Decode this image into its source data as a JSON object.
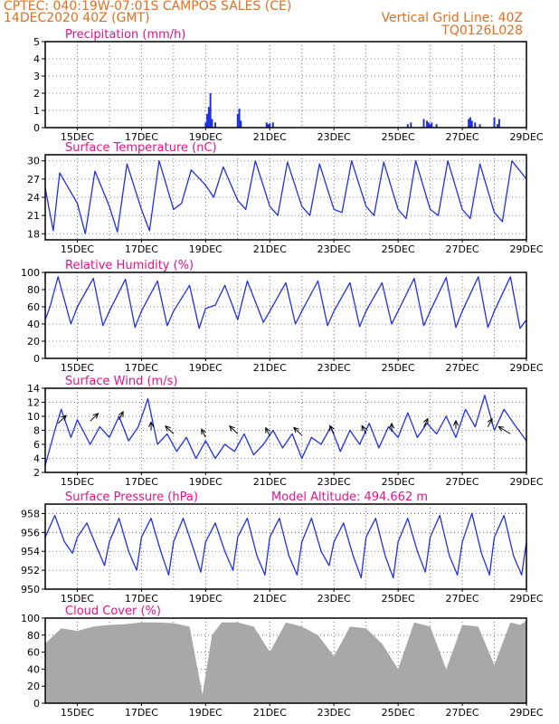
{
  "header": {
    "line1": "CPTEC:  040:19W-07:01S  CAMPOS SALES (CE)",
    "line2": "14DEC2020 40Z (GMT)",
    "vertical_grid": "Vertical Grid Line: 40Z",
    "code": "TQ0126L028"
  },
  "colors": {
    "header": "#e07020",
    "title": "#e0148c",
    "line": "#2030e0",
    "cloud": "#a8a8a8"
  },
  "x_ticks": [
    "15DEC",
    "17DEC",
    "19DEC",
    "21DEC",
    "23DEC",
    "25DEC",
    "27DEC",
    "29DEC"
  ],
  "chart_data": [
    {
      "type": "bar",
      "title": "Precipitation (mm/h)",
      "ylim": [
        0,
        5
      ],
      "yticks": [
        "0",
        "1",
        "2",
        "3",
        "4",
        "5"
      ],
      "series": [
        {
          "x": [
            5.0,
            5.05,
            5.1,
            5.15,
            5.2,
            5.3,
            6.0,
            6.05,
            6.1,
            6.9,
            6.95,
            7.0,
            7.1,
            11.3,
            11.4,
            11.8,
            11.9,
            11.95,
            12.0,
            12.05,
            12.2,
            13.2,
            13.25,
            13.3,
            13.4,
            13.55,
            14.0,
            14.1,
            14.15
          ],
          "values": [
            0.3,
            0.8,
            1.2,
            2.0,
            0.5,
            0.3,
            0.8,
            1.1,
            0.4,
            0.3,
            0.2,
            0.25,
            0.3,
            0.2,
            0.3,
            0.5,
            0.4,
            0.3,
            0.2,
            0.3,
            0.2,
            0.5,
            0.6,
            0.4,
            0.3,
            0.2,
            0.6,
            0.2,
            0.5
          ]
        }
      ]
    },
    {
      "type": "line",
      "title": "Surface Temperature (nC)",
      "ylim": [
        17,
        31
      ],
      "yticks": [
        "18",
        "21",
        "24",
        "27",
        "30"
      ],
      "series": [
        {
          "x": [
            0.0,
            0.25,
            0.45,
            1.0,
            1.25,
            1.55,
            2.0,
            2.25,
            2.55,
            3.0,
            3.25,
            3.55,
            4.0,
            4.25,
            4.55,
            5.0,
            5.25,
            5.55,
            6.0,
            6.25,
            6.55,
            7.0,
            7.25,
            7.55,
            8.0,
            8.25,
            8.55,
            9.0,
            9.25,
            9.55,
            10.0,
            10.25,
            10.55,
            11.0,
            11.25,
            11.55,
            12.0,
            12.25,
            12.55,
            13.0,
            13.25,
            13.55,
            14.0,
            14.25,
            14.55,
            15.0
          ],
          "values": [
            25.5,
            18.5,
            28.0,
            23.0,
            18.0,
            28.3,
            22.5,
            18.3,
            29.5,
            22.0,
            18.5,
            30.0,
            22.0,
            23.0,
            28.5,
            26.0,
            24.0,
            29.0,
            23.5,
            22.0,
            30.0,
            22.5,
            21.0,
            29.8,
            22.5,
            21.0,
            29.5,
            22.0,
            21.5,
            30.0,
            22.5,
            21.0,
            29.8,
            22.0,
            20.5,
            30.0,
            22.0,
            21.0,
            30.0,
            22.0,
            20.5,
            29.5,
            21.5,
            20.0,
            30.0,
            27.0
          ]
        }
      ]
    },
    {
      "type": "line",
      "title": "Relative Humidity (%)",
      "ylim": [
        0,
        100
      ],
      "yticks": [
        "0",
        "20",
        "40",
        "60",
        "80",
        "100"
      ],
      "series": [
        {
          "x": [
            0.0,
            0.15,
            0.4,
            0.8,
            1.0,
            1.5,
            1.8,
            2.0,
            2.5,
            2.8,
            3.0,
            3.5,
            3.8,
            4.0,
            4.5,
            4.8,
            5.0,
            5.3,
            5.6,
            6.0,
            6.3,
            6.8,
            7.0,
            7.5,
            7.8,
            8.0,
            8.5,
            8.8,
            9.0,
            9.5,
            9.8,
            10.0,
            10.5,
            10.8,
            11.0,
            11.5,
            11.8,
            12.0,
            12.5,
            12.8,
            13.0,
            13.5,
            13.8,
            14.0,
            14.5,
            14.8,
            15.0
          ],
          "values": [
            45.0,
            60.0,
            95.0,
            40.0,
            60.0,
            93.0,
            38.0,
            55.0,
            92.0,
            36.0,
            55.0,
            90.0,
            38.0,
            55.0,
            85.0,
            35.0,
            58.0,
            62.0,
            85.0,
            45.0,
            90.0,
            42.0,
            55.0,
            88.0,
            40.0,
            55.0,
            90.0,
            38.0,
            55.0,
            88.0,
            37.0,
            55.0,
            88.0,
            40.0,
            55.0,
            93.0,
            38.0,
            55.0,
            94.0,
            36.0,
            55.0,
            95.0,
            36.0,
            55.0,
            95.0,
            35.0,
            45.0
          ]
        }
      ]
    },
    {
      "type": "line",
      "title": "Surface Wind (m/s)",
      "ylim": [
        2,
        14
      ],
      "yticks": [
        "2",
        "4",
        "6",
        "8",
        "10",
        "12",
        "14"
      ],
      "series": [
        {
          "x": [
            0.0,
            0.3,
            0.5,
            0.8,
            1.0,
            1.4,
            1.7,
            2.0,
            2.3,
            2.6,
            2.9,
            3.2,
            3.5,
            3.8,
            4.1,
            4.4,
            4.7,
            5.0,
            5.3,
            5.6,
            5.9,
            6.2,
            6.5,
            6.8,
            7.1,
            7.4,
            7.7,
            8.0,
            8.3,
            8.6,
            8.9,
            9.2,
            9.5,
            9.8,
            10.1,
            10.4,
            10.7,
            11.0,
            11.3,
            11.6,
            11.9,
            12.2,
            12.5,
            12.8,
            13.1,
            13.4,
            13.7,
            14.0,
            14.3,
            14.6,
            15.0
          ],
          "values": [
            3.0,
            8.0,
            11.0,
            7.0,
            9.5,
            6.0,
            8.5,
            7.0,
            10.0,
            6.5,
            8.5,
            12.5,
            6.0,
            7.5,
            5.0,
            7.0,
            4.0,
            6.5,
            4.0,
            6.0,
            5.0,
            7.5,
            4.5,
            6.0,
            8.0,
            5.5,
            7.5,
            4.0,
            7.0,
            6.0,
            8.5,
            5.0,
            8.0,
            6.0,
            9.0,
            5.5,
            8.5,
            7.0,
            10.5,
            7.0,
            9.0,
            7.5,
            10.0,
            7.0,
            11.0,
            8.5,
            13.0,
            8.0,
            11.0,
            9.0,
            6.5
          ]
        }
      ],
      "arrows": [
        {
          "x": 0.4,
          "speed": 9.0,
          "dir": 250
        },
        {
          "x": 1.4,
          "speed": 9.3,
          "dir": 250
        },
        {
          "x": 2.3,
          "speed": 9.5,
          "dir": 260
        },
        {
          "x": 3.3,
          "speed": 8.0,
          "dir": 270
        },
        {
          "x": 4.0,
          "speed": 7.5,
          "dir": 290
        },
        {
          "x": 5.0,
          "speed": 7.0,
          "dir": 280
        },
        {
          "x": 6.0,
          "speed": 7.5,
          "dir": 290
        },
        {
          "x": 7.0,
          "speed": 7.2,
          "dir": 280
        },
        {
          "x": 8.0,
          "speed": 7.3,
          "dir": 290
        },
        {
          "x": 9.0,
          "speed": 7.5,
          "dir": 280
        },
        {
          "x": 10.0,
          "speed": 7.5,
          "dir": 280
        },
        {
          "x": 10.8,
          "speed": 7.8,
          "dir": 270
        },
        {
          "x": 11.8,
          "speed": 8.5,
          "dir": 260
        },
        {
          "x": 12.8,
          "speed": 8.2,
          "dir": 270
        },
        {
          "x": 13.8,
          "speed": 8.5,
          "dir": 260
        },
        {
          "x": 14.5,
          "speed": 7.5,
          "dir": 300
        }
      ]
    },
    {
      "type": "line",
      "title": "Surface Pressure (hPa)",
      "annotation": "Model Altitude: 494.662 m",
      "ylim": [
        950,
        959
      ],
      "yticks": [
        "950",
        "952",
        "954",
        "956",
        "958"
      ],
      "series": [
        {
          "x": [
            0.0,
            0.3,
            0.6,
            0.85,
            1.0,
            1.3,
            1.6,
            1.85,
            2.0,
            2.3,
            2.6,
            2.85,
            3.0,
            3.3,
            3.6,
            3.85,
            4.0,
            4.3,
            4.6,
            4.85,
            5.0,
            5.3,
            5.6,
            5.85,
            6.0,
            6.3,
            6.6,
            6.85,
            7.0,
            7.3,
            7.6,
            7.85,
            8.0,
            8.3,
            8.6,
            8.85,
            9.0,
            9.3,
            9.6,
            9.85,
            10.0,
            10.3,
            10.6,
            10.85,
            11.0,
            11.3,
            11.6,
            11.85,
            12.0,
            12.3,
            12.6,
            12.85,
            13.0,
            13.3,
            13.6,
            13.85,
            14.0,
            14.3,
            14.6,
            14.85,
            15.0
          ],
          "values": [
            955.5,
            957.8,
            955.0,
            953.8,
            955.5,
            957.0,
            954.5,
            952.5,
            955.0,
            957.5,
            954.0,
            952.0,
            955.5,
            957.5,
            954.0,
            951.5,
            955.0,
            957.5,
            954.5,
            951.8,
            955.0,
            957.0,
            954.0,
            952.0,
            955.5,
            957.5,
            953.5,
            951.5,
            955.5,
            957.5,
            953.5,
            951.5,
            955.0,
            957.5,
            954.0,
            952.5,
            955.0,
            957.0,
            953.5,
            951.2,
            955.5,
            957.5,
            953.5,
            951.2,
            955.0,
            957.5,
            954.0,
            951.8,
            955.5,
            957.8,
            953.5,
            951.5,
            955.0,
            958.0,
            953.8,
            951.5,
            955.5,
            957.8,
            953.5,
            951.5,
            955.0
          ]
        }
      ]
    },
    {
      "type": "area",
      "title": "Cloud Cover (%)",
      "ylim": [
        0,
        100
      ],
      "yticks": [
        "0",
        "20",
        "40",
        "60",
        "80",
        "100"
      ],
      "series": [
        {
          "x": [
            0.0,
            0.5,
            1.0,
            1.5,
            2.0,
            2.5,
            3.0,
            3.5,
            4.0,
            4.5,
            4.9,
            5.2,
            5.5,
            6.0,
            6.5,
            7.0,
            7.5,
            8.0,
            8.5,
            9.0,
            9.5,
            10.0,
            10.5,
            11.0,
            11.5,
            12.0,
            12.5,
            13.0,
            13.5,
            14.0,
            14.5,
            14.8,
            15.0
          ],
          "values": [
            70.0,
            88.0,
            85.0,
            90.0,
            92.0,
            93.0,
            95.0,
            95.0,
            94.0,
            90.0,
            10.0,
            80.0,
            95.0,
            95.0,
            90.0,
            60.0,
            95.0,
            90.0,
            80.0,
            55.0,
            90.0,
            88.0,
            70.0,
            40.0,
            95.0,
            90.0,
            40.0,
            92.0,
            90.0,
            45.0,
            95.0,
            92.0,
            97.0
          ]
        }
      ]
    }
  ]
}
